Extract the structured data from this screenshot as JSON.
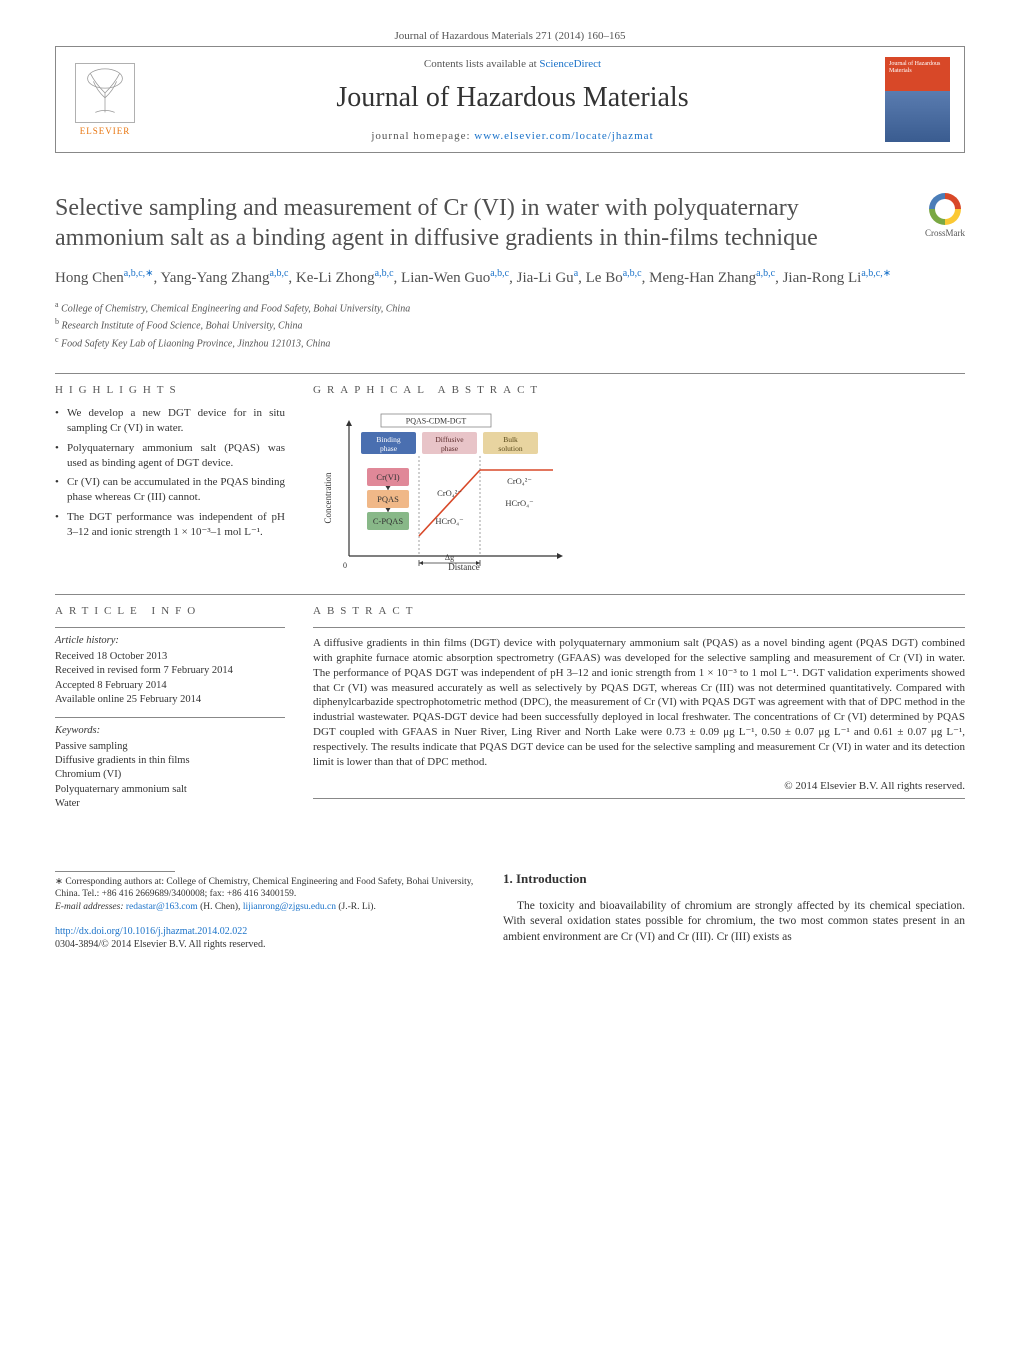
{
  "journal_header_line": "Journal of Hazardous Materials 271 (2014) 160–165",
  "header": {
    "contents_prefix": "Contents lists available at ",
    "contents_link": "ScienceDirect",
    "journal_name": "Journal of Hazardous Materials",
    "homepage_prefix": "journal homepage: ",
    "homepage_link": "www.elsevier.com/locate/jhazmat",
    "elsevier_label": "ELSEVIER",
    "cover_title": "Journal of Hazardous Materials"
  },
  "article": {
    "title": "Selective sampling and measurement of Cr (VI) in water with polyquaternary ammonium salt as a binding agent in diffusive gradients in thin-films technique",
    "crossmark_label": "CrossMark"
  },
  "authors_html": "Hong Chen<sup class='sup-link'>a,b,c,∗</sup>, Yang-Yang Zhang<sup class='sup-link'>a,b,c</sup>, Ke-Li Zhong<sup class='sup-link'>a,b,c</sup>, Lian-Wen Guo<sup class='sup-link'>a,b,c</sup>, Jia-Li Gu<sup class='sup-link'>a</sup>, Le Bo<sup class='sup-link'>a,b,c</sup>, Meng-Han Zhang<sup class='sup-link'>a,b,c</sup>, Jian-Rong Li<sup class='sup-link'>a,b,c,∗</sup>",
  "affiliations": [
    {
      "marker": "a",
      "text": "College of Chemistry, Chemical Engineering and Food Safety, Bohai University, China"
    },
    {
      "marker": "b",
      "text": "Research Institute of Food Science, Bohai University, China"
    },
    {
      "marker": "c",
      "text": "Food Safety Key Lab of Liaoning Province, Jinzhou 121013, China"
    }
  ],
  "highlights": {
    "heading": "HIGHLIGHTS",
    "items": [
      "We develop a new DGT device for in situ sampling Cr (VI) in water.",
      "Polyquaternary ammonium salt (PQAS) was used as binding agent of DGT device.",
      "Cr (VI) can be accumulated in the PQAS binding phase whereas Cr (III) cannot.",
      "The DGT performance was independent of pH 3–12 and ionic strength 1 × 10⁻³–1 mol L⁻¹."
    ]
  },
  "graphical_abstract": {
    "heading": "GRAPHICAL ABSTRACT",
    "diagram": {
      "title": "PQAS-CDM-DGT",
      "y_label": "Concentration",
      "x_label": "Distance",
      "delta_g": "Δg",
      "zones": [
        {
          "label": "Binding phase",
          "color": "#4a6fb0",
          "text_color": "#ffffff"
        },
        {
          "label": "Diffusive phase",
          "color": "#e8c4c8",
          "text_color": "#5a2a2a"
        },
        {
          "label": "Bulk solution",
          "color": "#e8d4a0",
          "text_color": "#5a4a1a"
        }
      ],
      "binding_species": [
        {
          "text": "Cr(VI)",
          "bg": "#e08898"
        },
        {
          "text": "PQAS",
          "bg": "#f0b888"
        },
        {
          "text": "C-PQAS",
          "bg": "#88b888"
        }
      ],
      "grad_species_top": "CrO₄²⁻",
      "grad_species_bottom": "HCrO₄⁻",
      "bulk_top": "CrO₄²⁻",
      "bulk_bottom": "HCrO₄⁻",
      "axis_color": "#333333",
      "gradient_line_color": "#d84828"
    }
  },
  "article_info": {
    "heading": "ARTICLE INFO",
    "history_heading": "Article history:",
    "history": [
      "Received 18 October 2013",
      "Received in revised form 7 February 2014",
      "Accepted 8 February 2014",
      "Available online 25 February 2014"
    ],
    "keywords_heading": "Keywords:",
    "keywords": [
      "Passive sampling",
      "Diffusive gradients in thin films",
      "Chromium (VI)",
      "Polyquaternary ammonium salt",
      "Water"
    ]
  },
  "abstract": {
    "heading": "ABSTRACT",
    "text": "A diffusive gradients in thin films (DGT) device with polyquaternary ammonium salt (PQAS) as a novel binding agent (PQAS DGT) combined with graphite furnace atomic absorption spectrometry (GFAAS) was developed for the selective sampling and measurement of Cr (VI) in water. The performance of PQAS DGT was independent of pH 3–12 and ionic strength from 1 × 10⁻³ to 1 mol L⁻¹. DGT validation experiments showed that Cr (VI) was measured accurately as well as selectively by PQAS DGT, whereas Cr (III) was not determined quantitatively. Compared with diphenylcarbazide spectrophotometric method (DPC), the measurement of Cr (VI) with PQAS DGT was agreement with that of DPC method in the industrial wastewater. PQAS-DGT device had been successfully deployed in local freshwater. The concentrations of Cr (VI) determined by PQAS DGT coupled with GFAAS in Nuer River, Ling River and North Lake were 0.73 ± 0.09 μg L⁻¹, 0.50 ± 0.07 μg L⁻¹ and 0.61 ± 0.07 μg L⁻¹, respectively. The results indicate that PQAS DGT device can be used for the selective sampling and measurement Cr (VI) in water and its detection limit is lower than that of DPC method.",
    "copyright": "© 2014 Elsevier B.V. All rights reserved."
  },
  "introduction": {
    "heading": "1. Introduction",
    "text": "The toxicity and bioavailability of chromium are strongly affected by its chemical speciation. With several oxidation states possible for chromium, the two most common states present in an ambient environment are Cr (VI) and Cr (III). Cr (III) exists as"
  },
  "footnotes": {
    "corresponding": "∗ Corresponding authors at: College of Chemistry, Chemical Engineering and Food Safety, Bohai University, China. Tel.: +86 416 2669689/3400008; fax: +86 416 3400159.",
    "email_label": "E-mail addresses: ",
    "emails": [
      {
        "addr": "redastar@163.com",
        "who": "(H. Chen)"
      },
      {
        "addr": "lijianrong@zjgsu.edu.cn",
        "who": "(J.-R. Li)"
      }
    ]
  },
  "doi": {
    "url": "http://dx.doi.org/10.1016/j.jhazmat.2014.02.022",
    "issn_line": "0304-3894/© 2014 Elsevier B.V. All rights reserved."
  }
}
